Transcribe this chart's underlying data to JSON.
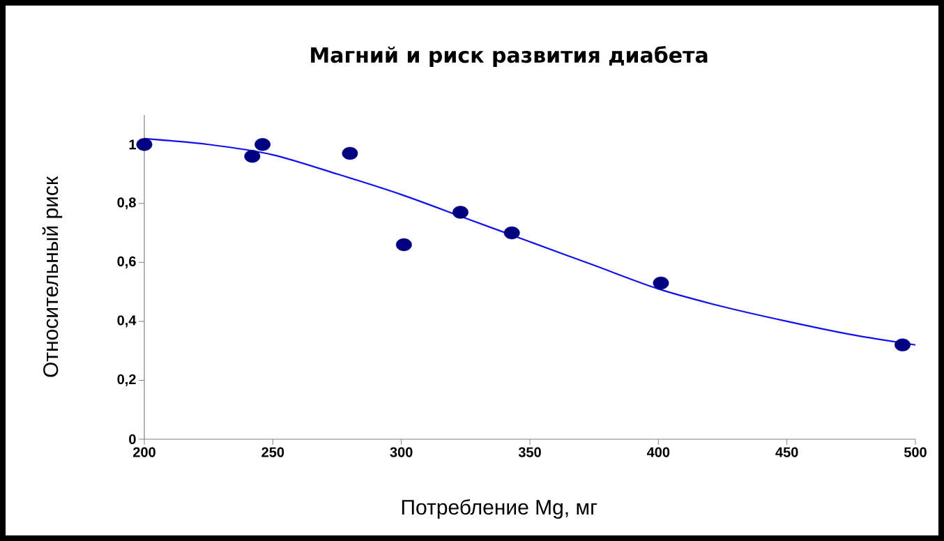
{
  "chart_data": {
    "type": "scatter",
    "title": "Магний и риск развития диабета",
    "xlabel": "Потребление Mg, мг",
    "ylabel": "Относительный риск",
    "xlim": [
      200,
      500
    ],
    "xticks": [
      200,
      250,
      300,
      350,
      400,
      450,
      500
    ],
    "ylim": [
      0,
      1.1
    ],
    "yticks": [
      0,
      {
        "value": 0.2,
        "label": "0,2"
      },
      {
        "value": 0.4,
        "label": "0,4"
      },
      {
        "value": 0.6,
        "label": "0,6"
      },
      {
        "value": 0.8,
        "label": "0,8"
      },
      1
    ],
    "grid": false,
    "series": [
      {
        "type": "line",
        "color": "#1010f0",
        "marker": "none",
        "x": [
          200,
          225,
          250,
          275,
          300,
          325,
          350,
          375,
          400,
          425,
          450,
          475,
          500
        ],
        "values": [
          1.02,
          1.0,
          0.965,
          0.9,
          0.83,
          0.75,
          0.67,
          0.59,
          0.51,
          0.45,
          0.4,
          0.355,
          0.32
        ]
      },
      {
        "type": "scatter",
        "color": "#000080",
        "marker": "circle",
        "x": [
          200,
          242,
          246,
          280,
          301,
          323,
          343,
          401,
          495
        ],
        "values": [
          1.0,
          0.96,
          1.0,
          0.97,
          0.66,
          0.77,
          0.7,
          0.53,
          0.32
        ]
      }
    ]
  }
}
